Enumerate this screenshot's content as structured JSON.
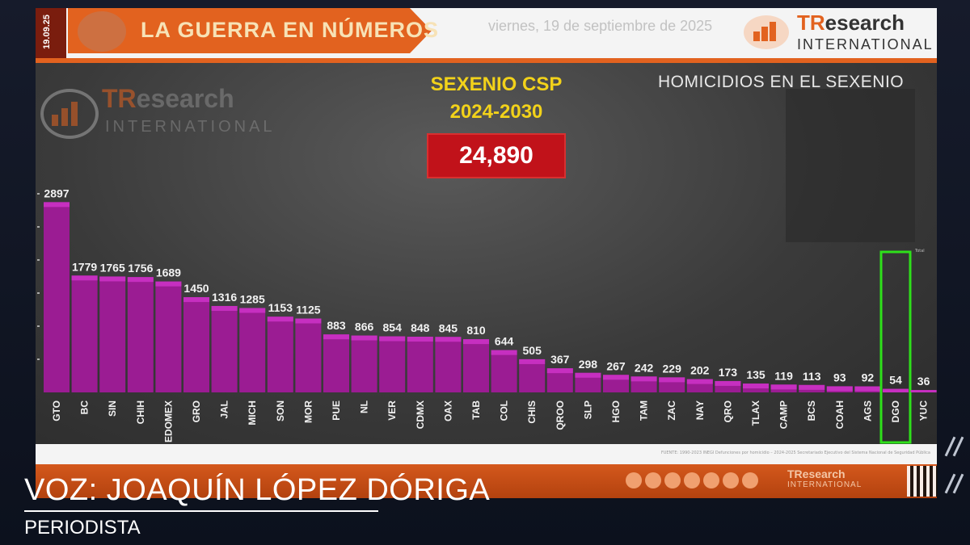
{
  "header": {
    "date_strip": "19.09.25",
    "title": "LA GUERRA EN NÚMEROS",
    "date": "viernes, 19 de septiembre de 2025",
    "logo_tr": "TR",
    "logo_esearch": "esearch",
    "logo_intl": "INTERNATIONAL"
  },
  "headline": {
    "line1": "SEXENIO CSP",
    "line2": "2024-2030",
    "total": "24,890",
    "subtitle": "HOMICIDIOS EN EL SEXENIO"
  },
  "watermark": {
    "tr": "TR",
    "esearch": "esearch",
    "intl": "INTERNATIONAL"
  },
  "tiny_label": "Total",
  "footer": {
    "source": "FUENTE: 1990-2023 INEGI Defunciones por homicidio – 2024-2025 Secretariado Ejecutivo del Sistema Nacional de Seguridad Pública",
    "logo": "TResearch",
    "logo_intl": "INTERNATIONAL"
  },
  "caption": {
    "voz": "VOZ: JOAQUÍN LÓPEZ DÓRIGA",
    "role": "PERIODISTA"
  },
  "colors": {
    "bar": "#9b1c93",
    "bar_highlight": "#c62fc0",
    "accent": "#e2621f",
    "highlight_box": "#2ee01a"
  },
  "chart_data": {
    "type": "bar",
    "categories": [
      "GTO",
      "BC",
      "SIN",
      "CHIH",
      "EDOMEX",
      "GRO",
      "JAL",
      "MICH",
      "SON",
      "MOR",
      "PUE",
      "NL",
      "VER",
      "CDMX",
      "OAX",
      "TAB",
      "COL",
      "CHIS",
      "QROO",
      "SLP",
      "HGO",
      "TAM",
      "ZAC",
      "NAY",
      "QRO",
      "TLAX",
      "CAMP",
      "BCS",
      "COAH",
      "AGS",
      "DGO",
      "YUC"
    ],
    "values": [
      2897,
      1779,
      1765,
      1756,
      1689,
      1450,
      1316,
      1285,
      1153,
      1125,
      883,
      866,
      854,
      848,
      845,
      810,
      644,
      505,
      367,
      298,
      267,
      242,
      229,
      202,
      173,
      135,
      119,
      113,
      93,
      92,
      54,
      36
    ],
    "value_labels": [
      "2897",
      "1779",
      "1765",
      "1756",
      "1689",
      "1450",
      "1316",
      "1285",
      "1153",
      "1125",
      "883",
      "866",
      "854",
      "848",
      "845",
      "810",
      "644",
      "505",
      "367",
      "298",
      "267",
      "242",
      "229",
      "202",
      "173",
      "135",
      "119",
      "113",
      "93",
      "92",
      "54",
      "36"
    ],
    "highlighted": "DGO",
    "title": "HOMICIDIOS EN EL SEXENIO",
    "ylim": [
      0,
      3000
    ],
    "grid": false,
    "legend": "none"
  }
}
